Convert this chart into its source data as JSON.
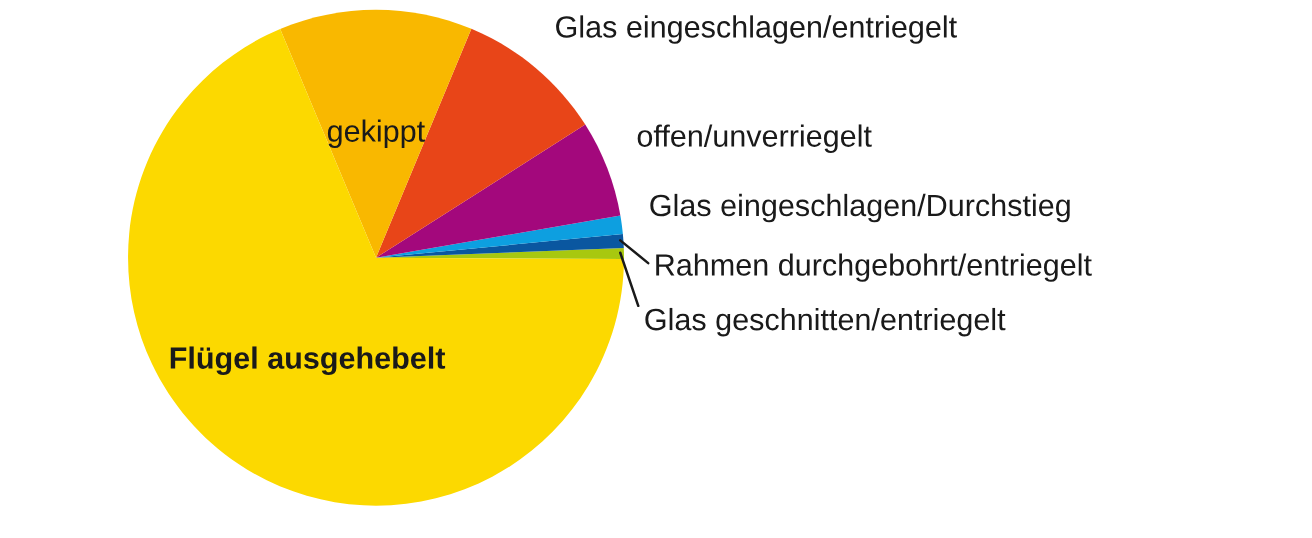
{
  "chart_data": {
    "type": "pie",
    "categories": [
      "Glas geschnitten/entriegelt",
      "Rahmen durchgebohrt/entriegelt",
      "Glas eingeschlagen/Durchstieg",
      "offen/unverriegelt",
      "Glas eingeschlagen/entriegelt",
      "gekippt",
      "Flügel ausgehebelt"
    ],
    "values": [
      0.7,
      0.9,
      1.2,
      6.3,
      9.7,
      12.6,
      68.6
    ],
    "colors": [
      "#a8c80f",
      "#0a57a0",
      "#0d9fe0",
      "#a3087c",
      "#e84518",
      "#f9b800",
      "#fcd900"
    ]
  }
}
